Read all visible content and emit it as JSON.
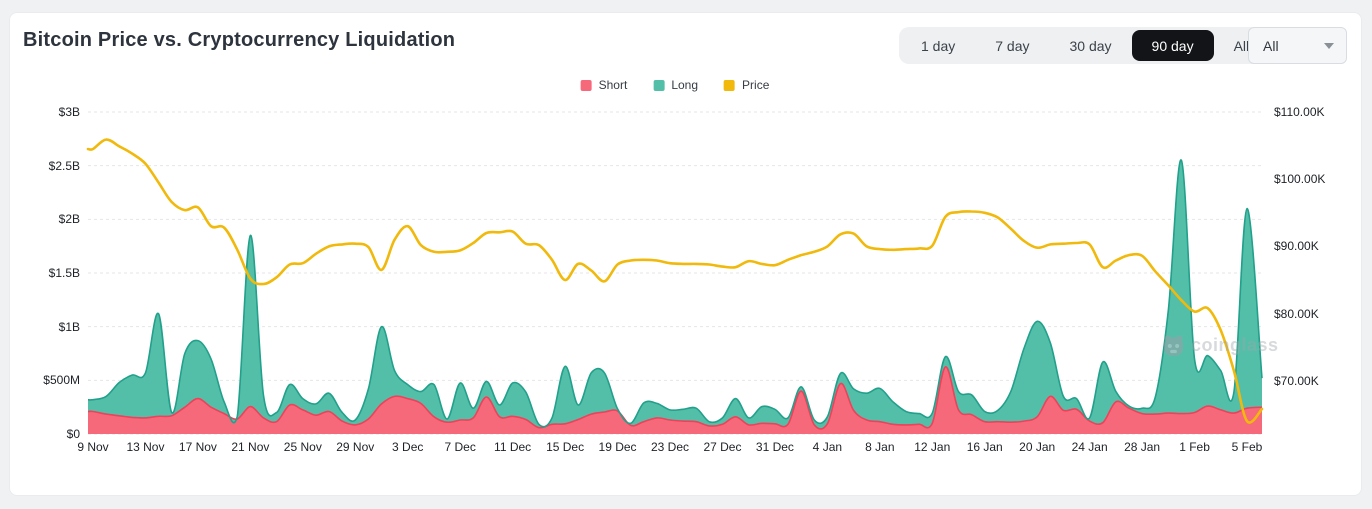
{
  "header": {
    "title": "Bitcoin Price vs. Cryptocurrency Liquidation"
  },
  "controls": {
    "range_buttons": [
      "1 day",
      "7 day",
      "30 day",
      "90 day",
      "All"
    ],
    "active_range": "90 day",
    "symbol_dropdown": {
      "value": "All"
    }
  },
  "legend": [
    {
      "label": "Short",
      "color": "#f5697a"
    },
    {
      "label": "Long",
      "color": "#54bfa9"
    },
    {
      "label": "Price",
      "color": "#f0b90b"
    }
  ],
  "watermark": {
    "text": "coinglass"
  },
  "colors": {
    "short_fill": "#f5697a",
    "short_stroke": "#ef4159",
    "long_fill": "#54bfa9",
    "long_stroke": "#21a08b",
    "price_line": "#f0b90b",
    "grid": "#e5e6e8",
    "active_button_bg": "#121417",
    "page_bg": "#f0f1f3"
  },
  "chart_data": {
    "type": "area",
    "title": "Bitcoin Price vs. Cryptocurrency Liquidation",
    "x": [
      "9 Nov",
      "10 Nov",
      "11 Nov",
      "12 Nov",
      "13 Nov",
      "14 Nov",
      "15 Nov",
      "16 Nov",
      "17 Nov",
      "18 Nov",
      "19 Nov",
      "20 Nov",
      "21 Nov",
      "22 Nov",
      "23 Nov",
      "24 Nov",
      "25 Nov",
      "26 Nov",
      "27 Nov",
      "28 Nov",
      "29 Nov",
      "30 Nov",
      "1 Dec",
      "2 Dec",
      "3 Dec",
      "4 Dec",
      "5 Dec",
      "6 Dec",
      "7 Dec",
      "8 Dec",
      "9 Dec",
      "10 Dec",
      "11 Dec",
      "12 Dec",
      "13 Dec",
      "14 Dec",
      "15 Dec",
      "16 Dec",
      "17 Dec",
      "18 Dec",
      "19 Dec",
      "20 Dec",
      "21 Dec",
      "22 Dec",
      "23 Dec",
      "24 Dec",
      "25 Dec",
      "26 Dec",
      "27 Dec",
      "28 Dec",
      "29 Dec",
      "30 Dec",
      "31 Dec",
      "1 Jan",
      "2 Jan",
      "3 Jan",
      "4 Jan",
      "5 Jan",
      "6 Jan",
      "7 Jan",
      "8 Jan",
      "9 Jan",
      "10 Jan",
      "11 Jan",
      "12 Jan",
      "13 Jan",
      "14 Jan",
      "15 Jan",
      "16 Jan",
      "17 Jan",
      "18 Jan",
      "19 Jan",
      "20 Jan",
      "21 Jan",
      "22 Jan",
      "23 Jan",
      "24 Jan",
      "25 Jan",
      "26 Jan",
      "27 Jan",
      "28 Jan",
      "29 Jan",
      "30 Jan",
      "31 Jan",
      "1 Feb",
      "2 Feb",
      "3 Feb",
      "4 Feb",
      "5 Feb",
      "6 Feb"
    ],
    "x_tick_labels": [
      "9 Nov",
      "13 Nov",
      "17 Nov",
      "21 Nov",
      "25 Nov",
      "29 Nov",
      "3 Dec",
      "7 Dec",
      "11 Dec",
      "15 Dec",
      "19 Dec",
      "23 Dec",
      "27 Dec",
      "31 Dec",
      "4 Jan",
      "8 Jan",
      "12 Jan",
      "16 Jan",
      "20 Jan",
      "24 Jan",
      "28 Jan",
      "1 Feb",
      "5 Feb"
    ],
    "series": [
      {
        "name": "Short",
        "type": "area",
        "stacked": true,
        "axis": "left",
        "unit": "USD millions",
        "values": [
          210,
          185,
          170,
          155,
          150,
          165,
          170,
          250,
          330,
          250,
          190,
          140,
          255,
          150,
          115,
          270,
          225,
          175,
          210,
          120,
          85,
          140,
          280,
          350,
          330,
          285,
          160,
          110,
          130,
          150,
          345,
          160,
          165,
          135,
          60,
          90,
          95,
          135,
          185,
          205,
          215,
          80,
          115,
          150,
          130,
          120,
          115,
          75,
          90,
          160,
          85,
          100,
          95,
          90,
          400,
          85,
          95,
          470,
          220,
          130,
          115,
          90,
          85,
          90,
          100,
          625,
          225,
          180,
          115,
          115,
          110,
          120,
          160,
          350,
          220,
          230,
          120,
          105,
          300,
          240,
          190,
          185,
          195,
          190,
          200,
          260,
          225,
          195,
          240,
          250
        ]
      },
      {
        "name": "Long",
        "type": "area",
        "stacked": true,
        "axis": "left",
        "unit": "USD millions",
        "values": [
          110,
          165,
          310,
          395,
          420,
          955,
          30,
          500,
          540,
          450,
          110,
          25,
          1595,
          210,
          85,
          190,
          105,
          105,
          170,
          80,
          45,
          280,
          720,
          240,
          130,
          110,
          300,
          30,
          345,
          90,
          145,
          110,
          310,
          255,
          30,
          60,
          535,
          135,
          385,
          365,
          20,
          20,
          175,
          135,
          95,
          110,
          125,
          40,
          60,
          170,
          65,
          155,
          135,
          60,
          40,
          45,
          65,
          95,
          200,
          250,
          310,
          210,
          125,
          100,
          95,
          95,
          170,
          185,
          95,
          105,
          290,
          680,
          890,
          500,
          130,
          100,
          30,
          565,
          95,
          20,
          50,
          155,
          955,
          2360,
          500,
          470,
          365,
          195,
          1860,
          270
        ]
      },
      {
        "name": "Price",
        "type": "line",
        "axis": "right",
        "unit": "USD thousands",
        "values": [
          104.5,
          105.9,
          104.9,
          103.8,
          102.3,
          99.5,
          96.6,
          95.4,
          95.8,
          93.0,
          92.8,
          89.5,
          85.2,
          84.4,
          85.4,
          87.3,
          87.5,
          88.9,
          90.0,
          90.3,
          90.4,
          89.9,
          86.5,
          91.0,
          93.0,
          90.2,
          89.2,
          89.2,
          89.4,
          90.5,
          92.0,
          92.1,
          92.2,
          90.4,
          90.2,
          88.0,
          85.0,
          87.4,
          86.4,
          84.8,
          87.3,
          87.9,
          88.0,
          87.9,
          87.5,
          87.4,
          87.4,
          87.3,
          87.0,
          86.9,
          87.8,
          87.4,
          87.2,
          88.0,
          88.7,
          89.2,
          90.0,
          91.8,
          91.9,
          90.0,
          89.6,
          89.5,
          89.6,
          89.7,
          90.1,
          94.4,
          95.1,
          95.2,
          95.0,
          94.3,
          92.6,
          90.8,
          89.8,
          90.3,
          90.4,
          90.5,
          90.3,
          86.9,
          87.9,
          88.7,
          88.6,
          86.3,
          84.2,
          82.0,
          80.3,
          80.8,
          77.5,
          71.5,
          64.0,
          65.8
        ]
      }
    ],
    "left_axis": {
      "ticks": [
        "$3B",
        "$2.5B",
        "$2B",
        "$1.5B",
        "$1B",
        "$500M",
        "$0"
      ],
      "range": [
        0,
        3000
      ],
      "unit": "USD millions",
      "grid": true
    },
    "right_axis": {
      "ticks": [
        "$110.00K",
        "$100.00K",
        "$90.00K",
        "$80.00K",
        "$70.00K"
      ],
      "tick_values": [
        110,
        100,
        90,
        80,
        70
      ],
      "unit": "USD thousands"
    },
    "legend_position": "top-center"
  }
}
